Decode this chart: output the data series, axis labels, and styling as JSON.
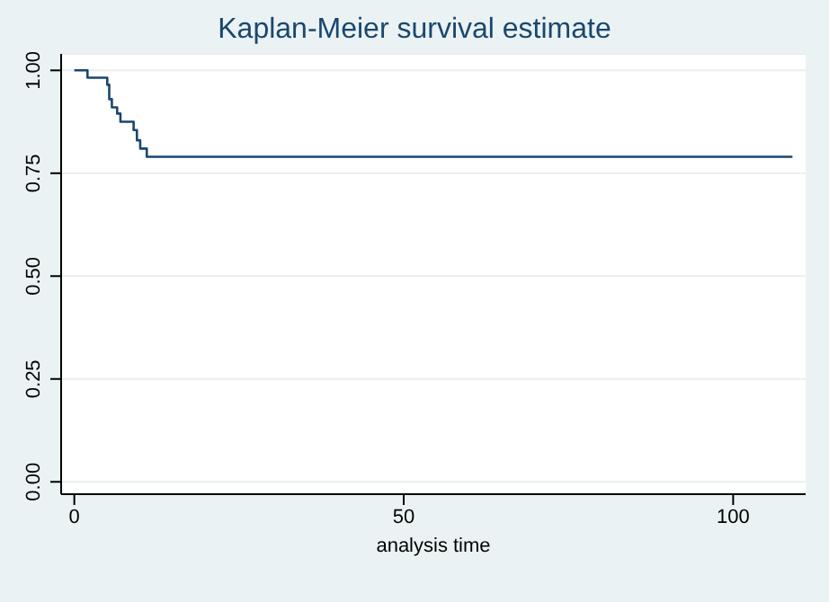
{
  "chart_data": {
    "type": "step",
    "title": "Kaplan-Meier survival estimate",
    "xlabel": "analysis time",
    "x": [
      0,
      2,
      5,
      5.3,
      5.7,
      6.5,
      7,
      9,
      9.5,
      10,
      11,
      109
    ],
    "series": [
      {
        "color": "#1a476f",
        "values": [
          1,
          0.982,
          0.965,
          0.93,
          0.91,
          0.895,
          0.875,
          0.855,
          0.83,
          0.81,
          0.79,
          0.79
        ]
      }
    ],
    "xlim": [
      -2,
      111
    ],
    "xticks": [
      0,
      50,
      100
    ],
    "ylim": [
      -0.03,
      1.04
    ],
    "yticks": [
      {
        "value": 0,
        "label": "0.00"
      },
      {
        "value": 0.25,
        "label": "0.25"
      },
      {
        "value": 0.5,
        "label": "0.50"
      },
      {
        "value": 0.75,
        "label": "0.75"
      },
      {
        "value": 1,
        "label": "1.00"
      }
    ],
    "grid": "y",
    "legend": false,
    "marker": "none",
    "line_style": "solid"
  }
}
